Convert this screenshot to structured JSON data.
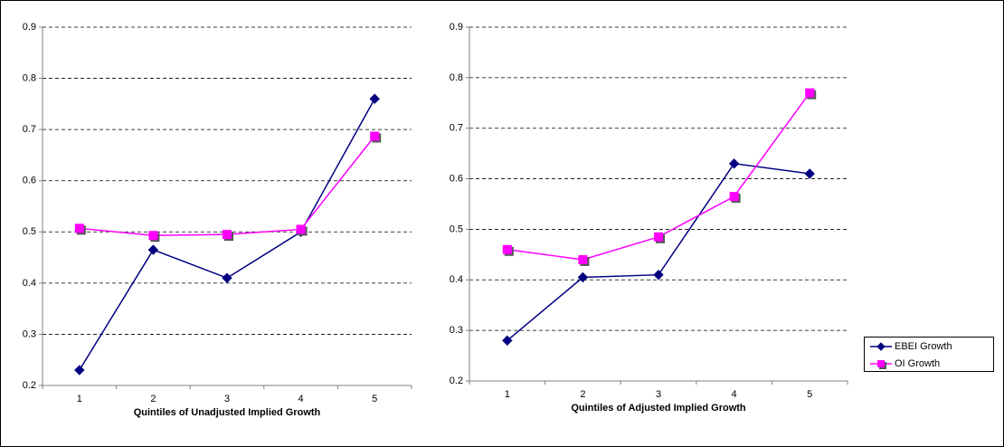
{
  "chart_data": [
    {
      "type": "line",
      "xlabel": "Quintiles of Unadjusted Implied Growth",
      "categories": [
        "1",
        "2",
        "3",
        "4",
        "5"
      ],
      "series": [
        {
          "name": "EBEI Growth",
          "color": "#000080",
          "marker": "diamond",
          "values": [
            0.23,
            0.465,
            0.41,
            0.5,
            0.76
          ]
        },
        {
          "name": "OI Growth",
          "color": "#ff00ff",
          "marker": "square",
          "values": [
            0.507,
            0.493,
            0.495,
            0.505,
            0.687
          ]
        }
      ],
      "ylim": [
        0.2,
        0.9
      ],
      "yticks": [
        0.2,
        0.3,
        0.4,
        0.5,
        0.6,
        0.7,
        0.8,
        0.9
      ],
      "grid": true
    },
    {
      "type": "line",
      "xlabel": "Quintiles of Adjusted Implied Growth",
      "categories": [
        "1",
        "2",
        "3",
        "4",
        "5"
      ],
      "series": [
        {
          "color": "#000080",
          "marker": "diamond",
          "values": [
            0.28,
            0.405,
            0.41,
            0.63,
            0.61
          ]
        },
        {
          "color": "#ff00ff",
          "marker": "square",
          "values": [
            0.46,
            0.44,
            0.485,
            0.565,
            0.77
          ]
        }
      ],
      "ylim": [
        0.2,
        0.9
      ],
      "yticks": [
        0.2,
        0.3,
        0.4,
        0.5,
        0.6,
        0.7,
        0.8,
        0.9
      ],
      "grid": true
    }
  ]
}
